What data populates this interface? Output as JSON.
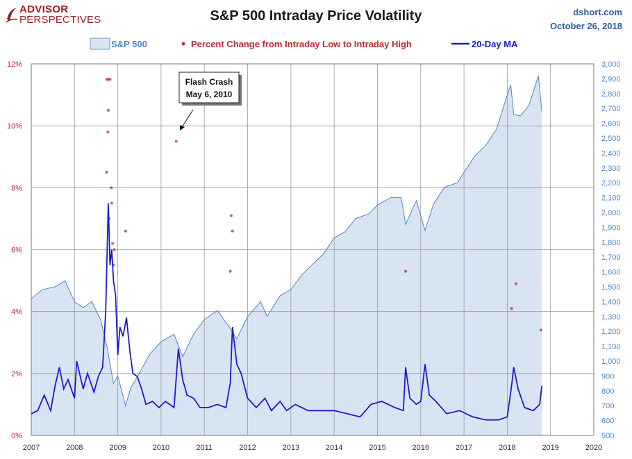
{
  "logo": {
    "line1": "ADVISOR",
    "line2": "PERSPECTIVES"
  },
  "header": {
    "title": "S&P 500 Intraday Price Volatility",
    "source": "dshort.com",
    "date": "October 26, 2018"
  },
  "colors": {
    "area_fill": "#d9e4f2",
    "area_line": "#4f86c6",
    "dots": "#c0282d",
    "ma_line": "#1a1ad6",
    "left_axis_text": "#c0282d",
    "right_axis_text": "#4f86c6",
    "grid": "#9a9a9a"
  },
  "chart_data": {
    "type": "line",
    "legend": [
      "S&P 500",
      "Percent Change from Intraday Low to Intraday High",
      "20-Day MA"
    ],
    "legend_position": "top",
    "grid": true,
    "x_ticks": [
      "2007",
      "2008",
      "2009",
      "2010",
      "2011",
      "2012",
      "2013",
      "2014",
      "2015",
      "2016",
      "2017",
      "2018",
      "2019",
      "2020"
    ],
    "x_range": [
      2007,
      2020
    ],
    "y_left_ticks": [
      "0%",
      "2%",
      "4%",
      "6%",
      "8%",
      "10%",
      "12%"
    ],
    "y_left_range": [
      0,
      12
    ],
    "y_right_ticks": [
      "500",
      "600",
      "700",
      "800",
      "900",
      "1,000",
      "1,100",
      "1,200",
      "1,300",
      "1,400",
      "1,500",
      "1,600",
      "1,700",
      "1,800",
      "1,900",
      "2,000",
      "2,100",
      "2,200",
      "2,300",
      "2,400",
      "2,500",
      "2,600",
      "2,700",
      "2,800",
      "2,900",
      "3,000"
    ],
    "y_right_range": [
      500,
      3000
    ],
    "series": [
      {
        "name": "S&P 500",
        "axis": "right",
        "style": "area",
        "x": [
          2007.0,
          2007.25,
          2007.55,
          2007.78,
          2008.0,
          2008.2,
          2008.4,
          2008.6,
          2008.75,
          2008.9,
          2009.0,
          2009.18,
          2009.3,
          2009.5,
          2009.75,
          2010.0,
          2010.3,
          2010.5,
          2010.75,
          2011.0,
          2011.3,
          2011.6,
          2011.75,
          2012.0,
          2012.3,
          2012.45,
          2012.75,
          2013.0,
          2013.25,
          2013.5,
          2013.75,
          2014.0,
          2014.25,
          2014.5,
          2014.8,
          2015.0,
          2015.3,
          2015.55,
          2015.65,
          2015.9,
          2016.1,
          2016.3,
          2016.55,
          2016.85,
          2017.0,
          2017.25,
          2017.5,
          2017.75,
          2018.0,
          2018.08,
          2018.15,
          2018.3,
          2018.5,
          2018.72,
          2018.8
        ],
        "values": [
          1420,
          1480,
          1500,
          1540,
          1400,
          1360,
          1400,
          1280,
          1100,
          850,
          900,
          700,
          820,
          920,
          1050,
          1130,
          1180,
          1030,
          1180,
          1280,
          1340,
          1220,
          1150,
          1300,
          1400,
          1300,
          1440,
          1480,
          1580,
          1650,
          1720,
          1830,
          1870,
          1960,
          1990,
          2050,
          2100,
          2100,
          1920,
          2080,
          1880,
          2060,
          2170,
          2200,
          2270,
          2380,
          2450,
          2560,
          2790,
          2860,
          2660,
          2650,
          2720,
          2920,
          2680
        ]
      },
      {
        "name": "Percent Change from Intraday Low to Intraday High",
        "axis": "left",
        "style": "dots",
        "x": [
          2008.75,
          2008.79,
          2008.82,
          2008.78,
          2008.85,
          2008.77,
          2008.8,
          2008.74,
          2008.88,
          2008.9,
          2008.86,
          2008.92,
          2009.18,
          2010.35,
          2011.62,
          2011.6,
          2011.65,
          2015.65,
          2018.1,
          2018.2,
          2018.78
        ],
        "values": [
          11.5,
          11.5,
          11.5,
          10.5,
          8.0,
          9.8,
          7.0,
          8.5,
          6.2,
          5.5,
          7.5,
          6.0,
          6.6,
          9.5,
          7.1,
          5.3,
          6.6,
          5.3,
          4.1,
          4.9,
          3.4
        ]
      },
      {
        "name": "20-Day MA",
        "axis": "left",
        "style": "line",
        "x": [
          2007.0,
          2007.15,
          2007.3,
          2007.45,
          2007.55,
          2007.65,
          2007.75,
          2007.85,
          2008.0,
          2008.05,
          2008.2,
          2008.3,
          2008.45,
          2008.55,
          2008.65,
          2008.72,
          2008.78,
          2008.82,
          2008.86,
          2008.9,
          2008.95,
          2009.0,
          2009.05,
          2009.12,
          2009.2,
          2009.28,
          2009.35,
          2009.45,
          2009.55,
          2009.65,
          2009.8,
          2009.95,
          2010.1,
          2010.3,
          2010.4,
          2010.5,
          2010.6,
          2010.75,
          2010.9,
          2011.1,
          2011.3,
          2011.5,
          2011.6,
          2011.65,
          2011.75,
          2011.85,
          2012.0,
          2012.2,
          2012.4,
          2012.55,
          2012.75,
          2012.9,
          2013.1,
          2013.4,
          2013.7,
          2014.0,
          2014.3,
          2014.6,
          2014.85,
          2015.1,
          2015.4,
          2015.6,
          2015.65,
          2015.75,
          2015.9,
          2016.0,
          2016.1,
          2016.2,
          2016.35,
          2016.6,
          2016.9,
          2017.2,
          2017.5,
          2017.8,
          2018.0,
          2018.1,
          2018.15,
          2018.25,
          2018.4,
          2018.6,
          2018.75,
          2018.8
        ],
        "values": [
          0.7,
          0.8,
          1.3,
          0.8,
          1.6,
          2.2,
          1.5,
          1.8,
          1.2,
          2.4,
          1.5,
          2.0,
          1.4,
          1.9,
          2.2,
          4.0,
          7.5,
          5.5,
          6.0,
          5.0,
          4.5,
          2.6,
          3.5,
          3.2,
          3.8,
          2.7,
          2.0,
          1.9,
          1.5,
          1.0,
          1.1,
          0.9,
          1.1,
          0.9,
          2.8,
          1.8,
          1.3,
          1.2,
          0.9,
          0.9,
          1.0,
          0.9,
          1.7,
          3.5,
          2.3,
          2.0,
          1.2,
          0.9,
          1.2,
          0.8,
          1.1,
          0.8,
          1.0,
          0.8,
          0.8,
          0.8,
          0.7,
          0.6,
          1.0,
          1.1,
          0.9,
          0.8,
          2.2,
          1.2,
          1.0,
          1.1,
          2.3,
          1.3,
          1.1,
          0.7,
          0.8,
          0.6,
          0.5,
          0.5,
          0.6,
          1.6,
          2.2,
          1.5,
          0.9,
          0.8,
          1.0,
          1.6
        ]
      }
    ],
    "annotations": [
      {
        "text_lines": [
          "Flash Crash",
          "May 6, 2010"
        ],
        "x": 2010.35,
        "y": 9.5
      }
    ]
  }
}
